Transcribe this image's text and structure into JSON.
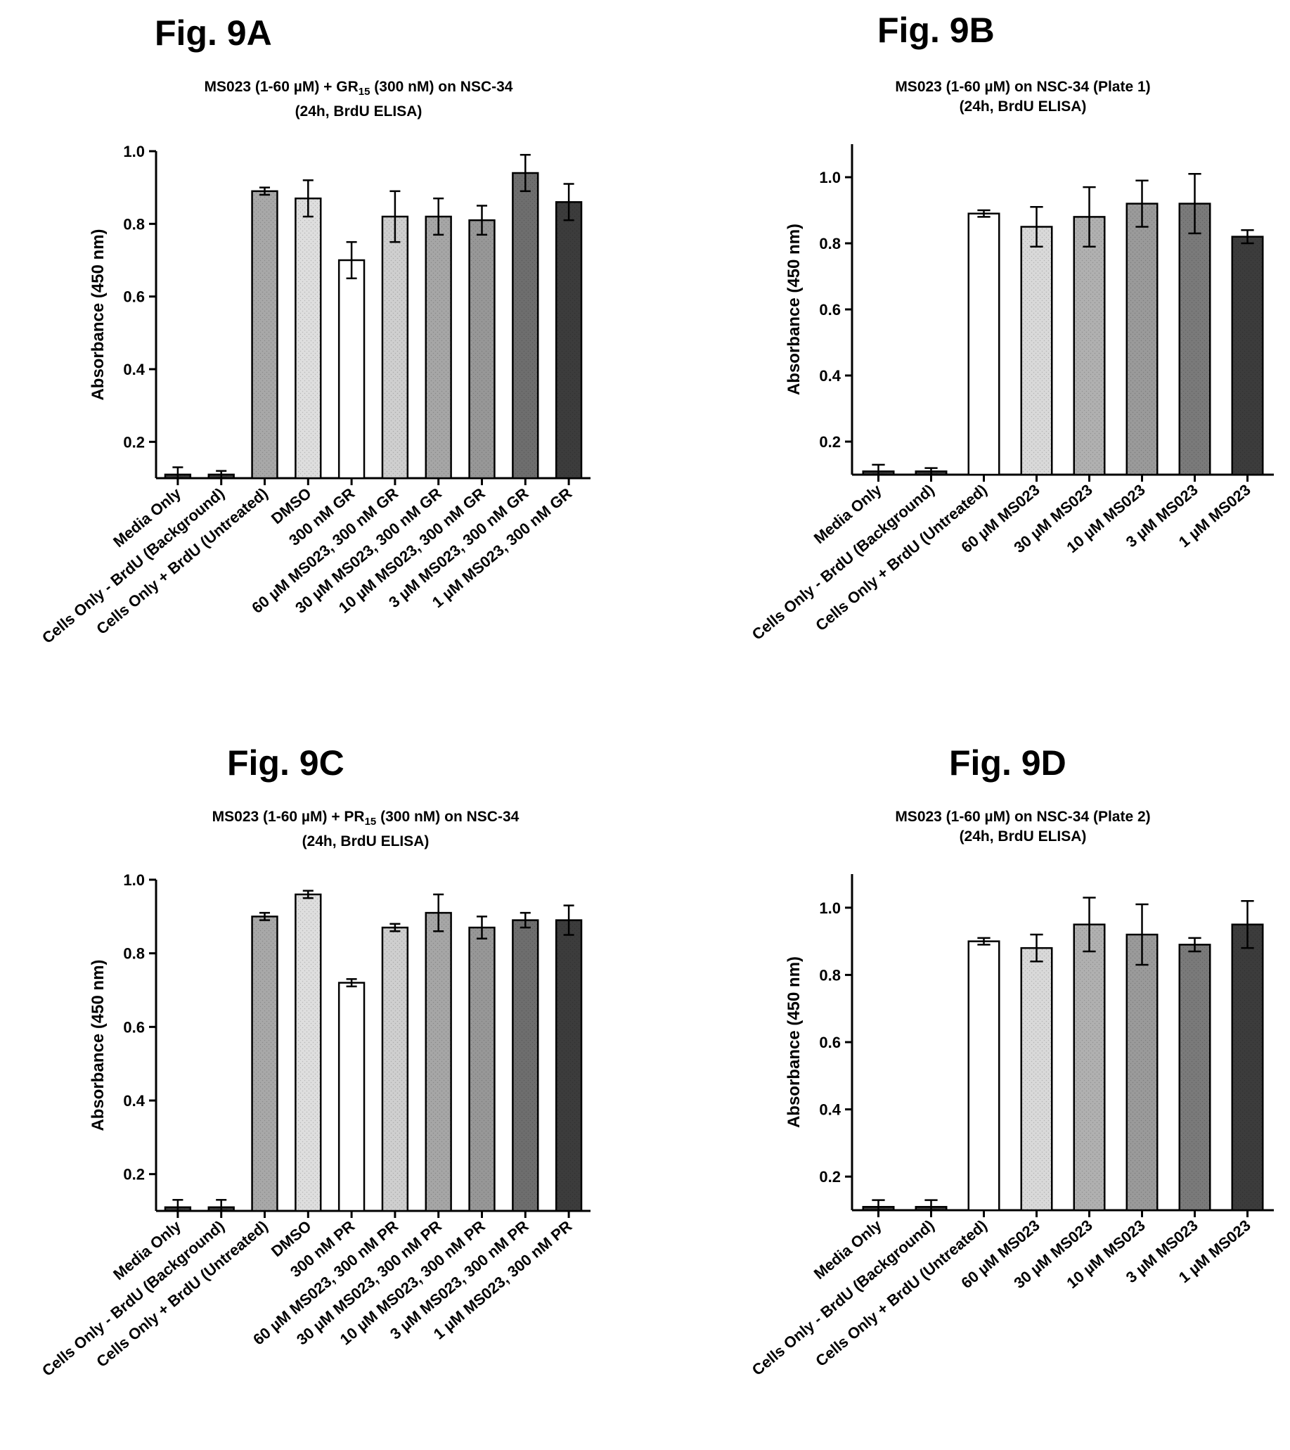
{
  "chart_data": [
    {
      "type": "bar",
      "figure_label": "Fig. 9A",
      "title": "MS023 (1-60 µM) + GR15 (300 nM) on NSC-34",
      "subtitle": "(24h, BrdU ELISA)",
      "ylabel": "Absorbance (450 nm)",
      "ylim": [
        0.1,
        1.0
      ],
      "yticks": [
        "0.2",
        "0.4",
        "0.6",
        "0.8",
        "1.0"
      ],
      "categories": [
        "Media Only",
        "Cells Only - BrdU (Background)",
        "Cells Only + BrdU (Untreated)",
        "DMSO",
        "300 nM GR",
        "60 µM MS023, 300 nM GR",
        "30 µM MS023, 300 nM GR",
        "10 µM MS023, 300 nM GR",
        "3 µM MS023, 300 nM GR",
        "1 µM MS023, 300 nM GR"
      ],
      "values": [
        0.11,
        0.11,
        0.89,
        0.87,
        0.7,
        0.82,
        0.82,
        0.81,
        0.94,
        0.86
      ],
      "errors": [
        0.02,
        0.01,
        0.01,
        0.05,
        0.05,
        0.07,
        0.05,
        0.04,
        0.05,
        0.05
      ],
      "colors": [
        "#3a3a3a",
        "#3a3a3a",
        "#a8a8a8",
        "#dedede",
        "#ffffff",
        "#cfcfcf",
        "#a6a6a6",
        "#979797",
        "#6e6e6e",
        "#3c3c3c"
      ]
    },
    {
      "type": "bar",
      "figure_label": "Fig. 9B",
      "title": "MS023 (1-60 µM) on NSC-34 (Plate 1)",
      "subtitle": "(24h, BrdU ELISA)",
      "ylabel": "Absorbance (450 nm)",
      "ylim": [
        0.1,
        1.1
      ],
      "yticks": [
        "0.2",
        "0.4",
        "0.6",
        "0.8",
        "1.0"
      ],
      "categories": [
        "Media Only",
        "Cells Only - BrdU (Background)",
        "Cells Only + BrdU (Untreated)",
        "60 µM MS023",
        "30 µM MS023",
        "10 µM MS023",
        "3 µM MS023",
        "1 µM MS023"
      ],
      "values": [
        0.11,
        0.11,
        0.89,
        0.85,
        0.88,
        0.92,
        0.92,
        0.82
      ],
      "errors": [
        0.02,
        0.01,
        0.01,
        0.06,
        0.09,
        0.07,
        0.09,
        0.02
      ],
      "colors": [
        "#3a3a3a",
        "#3a3a3a",
        "#ffffff",
        "#d9d9d9",
        "#b0b0b0",
        "#9a9a9a",
        "#7a7a7a",
        "#3c3c3c"
      ]
    },
    {
      "type": "bar",
      "figure_label": "Fig. 9C",
      "title": "MS023 (1-60 µM) + PR15 (300 nM) on NSC-34",
      "subtitle": "(24h, BrdU ELISA)",
      "ylabel": "Absorbance (450 nm)",
      "ylim": [
        0.1,
        1.0
      ],
      "yticks": [
        "0.2",
        "0.4",
        "0.6",
        "0.8",
        "1.0"
      ],
      "categories": [
        "Media Only",
        "Cells Only - BrdU (Background)",
        "Cells Only + BrdU (Untreated)",
        "DMSO",
        "300 nM PR",
        "60 µM MS023, 300 nM PR",
        "30 µM MS023, 300 nM PR",
        "10 µM MS023, 300 nM PR",
        "3 µM MS023, 300 nM PR",
        "1 µM MS023, 300 nM PR"
      ],
      "values": [
        0.11,
        0.11,
        0.9,
        0.96,
        0.72,
        0.87,
        0.91,
        0.87,
        0.89,
        0.89
      ],
      "errors": [
        0.02,
        0.02,
        0.01,
        0.01,
        0.01,
        0.01,
        0.05,
        0.03,
        0.02,
        0.04
      ],
      "colors": [
        "#3a3a3a",
        "#3a3a3a",
        "#a8a8a8",
        "#dedede",
        "#ffffff",
        "#cfcfcf",
        "#a6a6a6",
        "#979797",
        "#6e6e6e",
        "#3c3c3c"
      ]
    },
    {
      "type": "bar",
      "figure_label": "Fig. 9D",
      "title": "MS023 (1-60 µM) on NSC-34 (Plate 2)",
      "subtitle": "(24h, BrdU ELISA)",
      "ylabel": "Absorbance (450 nm)",
      "ylim": [
        0.1,
        1.1
      ],
      "yticks": [
        "0.2",
        "0.4",
        "0.6",
        "0.8",
        "1.0"
      ],
      "categories": [
        "Media Only",
        "Cells Only - BrdU (Background)",
        "Cells Only + BrdU (Untreated)",
        "60 µM MS023",
        "30 µM MS023",
        "10 µM MS023",
        "3 µM MS023",
        "1 µM MS023"
      ],
      "values": [
        0.11,
        0.11,
        0.9,
        0.88,
        0.95,
        0.92,
        0.89,
        0.95
      ],
      "errors": [
        0.02,
        0.02,
        0.01,
        0.04,
        0.08,
        0.09,
        0.02,
        0.07
      ],
      "colors": [
        "#3a3a3a",
        "#3a3a3a",
        "#ffffff",
        "#d9d9d9",
        "#b0b0b0",
        "#9a9a9a",
        "#7a7a7a",
        "#3c3c3c"
      ]
    }
  ]
}
